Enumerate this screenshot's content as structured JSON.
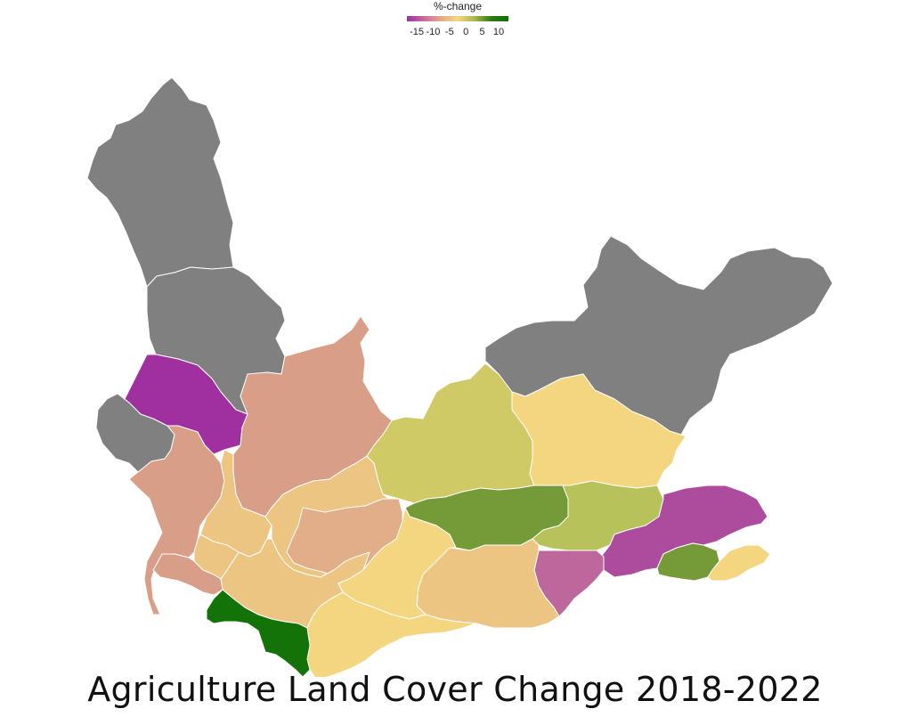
{
  "title": "Agriculture Land Cover Change 2018-2022",
  "legend": {
    "title": "%-change",
    "ticks": [
      "-15",
      "-10",
      "-5",
      "0",
      "5",
      "10"
    ],
    "tick_values": [
      -15,
      -10,
      -5,
      0,
      5,
      10
    ],
    "range": [
      -18,
      13
    ],
    "colors": [
      "#9b2fa5",
      "#c9699f",
      "#e3a88a",
      "#f4d880",
      "#a8b84a",
      "#2b7a12",
      "#116e05"
    ]
  },
  "colors": {
    "no_data": "#808080",
    "strong_decrease": "#a0309f",
    "decrease": "#ad4b9c",
    "mild_decrease": "#be679c",
    "slight_decrease": "#d89e88",
    "near_zero_neg": "#e2ad89",
    "near_zero": "#ecc583",
    "slight_increase": "#f4d680",
    "small_increase": "#cfc966",
    "medium_increase": "#b8c25a",
    "increase": "#759b38",
    "strong_increase": "#137208"
  }
}
